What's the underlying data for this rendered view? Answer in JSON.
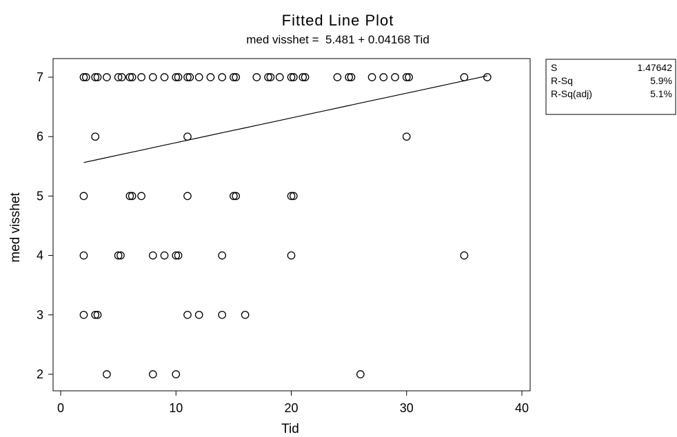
{
  "chart_data": {
    "type": "scatter",
    "title": "Fitted Line Plot",
    "subtitle": "med visshet =  5.481 + 0.04168 Tid",
    "xlabel": "Tid",
    "ylabel": "med visshet",
    "xlim": [
      0,
      40
    ],
    "ylim": [
      1.75,
      7.45
    ],
    "x_ticks": [
      0,
      10,
      20,
      30,
      40
    ],
    "y_ticks": [
      2,
      3,
      4,
      5,
      6,
      7
    ],
    "grid": false,
    "fit": {
      "intercept": 5.481,
      "slope": 0.04168,
      "x_range": [
        2,
        37
      ]
    },
    "stats": [
      {
        "label": "S",
        "value": "1.47642"
      },
      {
        "label": "R-Sq",
        "value": "5.9%"
      },
      {
        "label": "R-Sq(adj)",
        "value": "5.1%"
      }
    ],
    "points": [
      [
        2,
        7
      ],
      [
        2.2,
        7
      ],
      [
        3,
        7
      ],
      [
        3.2,
        7
      ],
      [
        4,
        7
      ],
      [
        5,
        7
      ],
      [
        5.3,
        7
      ],
      [
        6,
        7
      ],
      [
        6.2,
        7
      ],
      [
        7,
        7
      ],
      [
        8,
        7
      ],
      [
        9,
        7
      ],
      [
        10,
        7
      ],
      [
        10.2,
        7
      ],
      [
        11,
        7
      ],
      [
        11.2,
        7
      ],
      [
        12,
        7
      ],
      [
        13,
        7
      ],
      [
        14,
        7
      ],
      [
        15,
        7
      ],
      [
        15.2,
        7
      ],
      [
        17,
        7
      ],
      [
        18,
        7
      ],
      [
        18.2,
        7
      ],
      [
        19,
        7
      ],
      [
        20,
        7
      ],
      [
        20.2,
        7
      ],
      [
        21,
        7
      ],
      [
        21.2,
        7
      ],
      [
        24,
        7
      ],
      [
        25,
        7
      ],
      [
        25.2,
        7
      ],
      [
        27,
        7
      ],
      [
        28,
        7
      ],
      [
        29,
        7
      ],
      [
        30,
        7
      ],
      [
        30.2,
        7
      ],
      [
        35,
        7
      ],
      [
        37,
        7
      ],
      [
        3,
        6
      ],
      [
        11,
        6
      ],
      [
        30,
        6
      ],
      [
        2,
        5
      ],
      [
        6,
        5
      ],
      [
        6.2,
        5
      ],
      [
        7,
        5
      ],
      [
        11,
        5
      ],
      [
        15,
        5
      ],
      [
        15.2,
        5
      ],
      [
        20,
        5
      ],
      [
        20.2,
        5
      ],
      [
        2,
        4
      ],
      [
        5,
        4
      ],
      [
        5.2,
        4
      ],
      [
        8,
        4
      ],
      [
        9,
        4
      ],
      [
        10,
        4
      ],
      [
        10.2,
        4
      ],
      [
        14,
        4
      ],
      [
        20,
        4
      ],
      [
        35,
        4
      ],
      [
        2,
        3
      ],
      [
        3,
        3
      ],
      [
        3.2,
        3
      ],
      [
        11,
        3
      ],
      [
        12,
        3
      ],
      [
        14,
        3
      ],
      [
        16,
        3
      ],
      [
        4,
        2
      ],
      [
        8,
        2
      ],
      [
        10,
        2
      ],
      [
        26,
        2
      ]
    ]
  }
}
